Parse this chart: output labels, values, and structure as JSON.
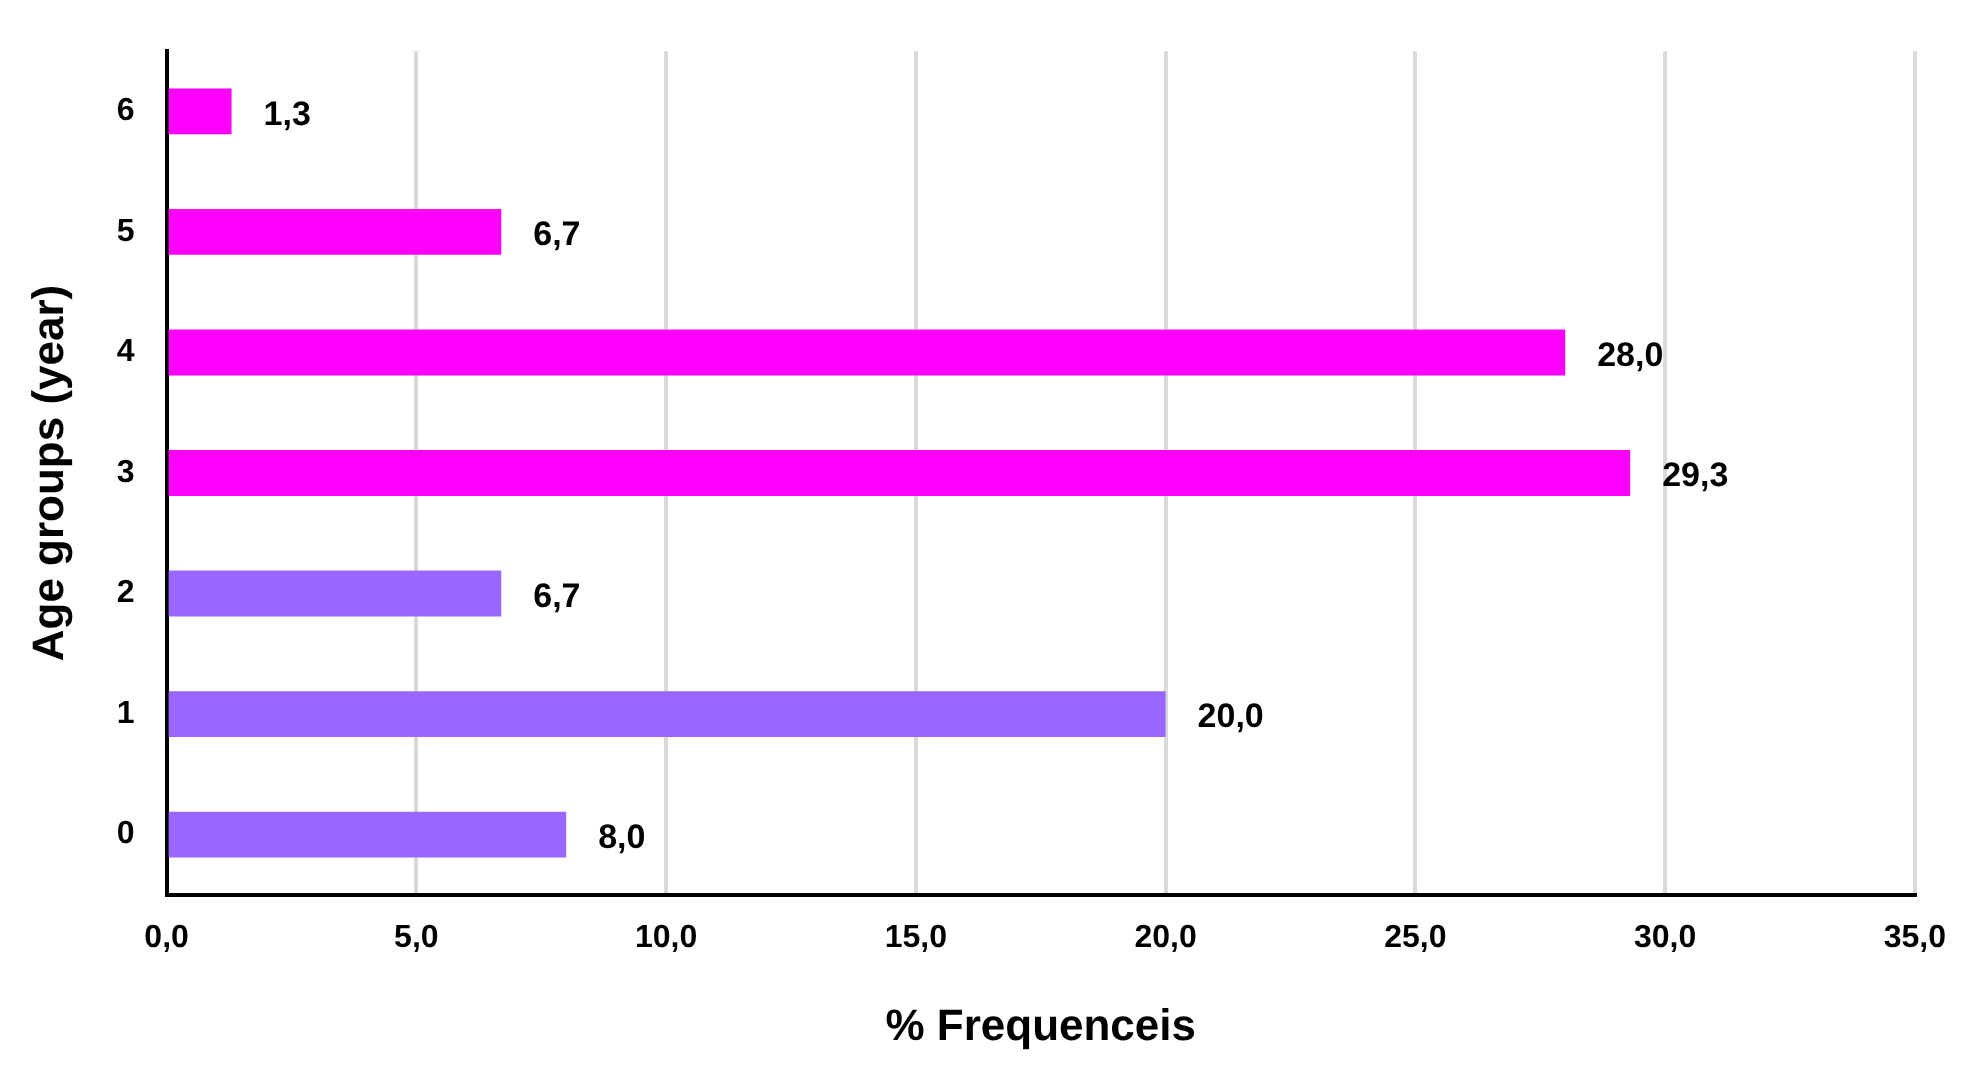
{
  "chart_data": {
    "type": "bar",
    "orientation": "horizontal",
    "xlabel": "% Frequenceis",
    "ylabel": "Age groups (year)",
    "categories": [
      "6",
      "5",
      "4",
      "3",
      "2",
      "1",
      "0"
    ],
    "values": [
      1.3,
      6.7,
      28.0,
      29.3,
      6.7,
      20.0,
      8.0
    ],
    "colors": [
      "#ff00ff",
      "#ff00ff",
      "#ff00ff",
      "#ff00ff",
      "#9966ff",
      "#9966ff",
      "#9966ff"
    ],
    "value_labels": [
      "1,3",
      "6,7",
      "28,0",
      "29,3",
      "6,7",
      "20,0",
      "8,0"
    ],
    "xlim": [
      0,
      35
    ],
    "xticks": [
      {
        "value": 0,
        "label": "0,0"
      },
      {
        "value": 5,
        "label": "5,0"
      },
      {
        "value": 10,
        "label": "10,0"
      },
      {
        "value": 15,
        "label": "15,0"
      },
      {
        "value": 20,
        "label": "20,0"
      },
      {
        "value": 25,
        "label": "25,0"
      },
      {
        "value": 30,
        "label": "30,0"
      },
      {
        "value": 35,
        "label": "35,0"
      }
    ],
    "grid": "x",
    "legend": false
  }
}
